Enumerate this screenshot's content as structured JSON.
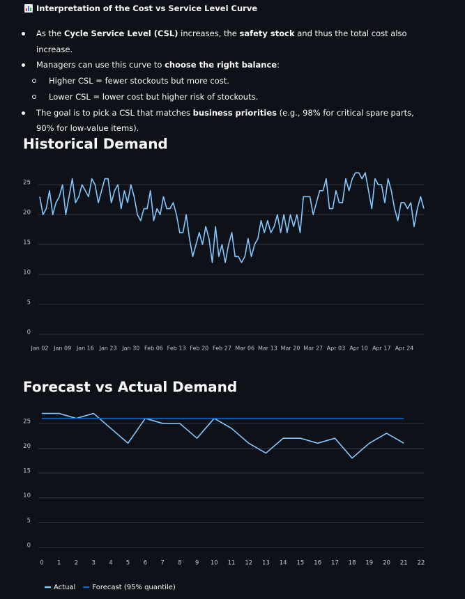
{
  "text": {
    "title": "Interpretation of the Cost vs Service Level Curve",
    "bullets": [
      {
        "segments": [
          {
            "text": "As the ",
            "bold": false
          },
          {
            "text": "Cycle Service Level (CSL)",
            "bold": true
          },
          {
            "text": " increases, the ",
            "bold": false
          },
          {
            "text": "safety stock",
            "bold": true
          },
          {
            "text": " and thus the total cost also increase.",
            "bold": false
          }
        ],
        "items": []
      },
      {
        "segments": [
          {
            "text": "Managers can use this curve to ",
            "bold": false
          },
          {
            "text": "choose the right balance",
            "bold": true
          },
          {
            "text": ":",
            "bold": false
          }
        ],
        "items": [
          "Higher CSL = fewer stockouts but more cost.",
          "Lower CSL = lower cost but higher risk of stockouts."
        ]
      },
      {
        "segments": [
          {
            "text": "The goal is to pick a CSL that matches ",
            "bold": false
          },
          {
            "text": "business priorities",
            "bold": true
          },
          {
            "text": " (e.g., 98% for critical spare parts, 90% for low-value items).",
            "bold": false
          }
        ],
        "items": []
      }
    ]
  },
  "chart_data": [
    {
      "type": "line",
      "title": "Historical Demand",
      "x": [
        "Jan 02",
        "Jan 03",
        "Jan 04",
        "Jan 05",
        "Jan 06",
        "Jan 07",
        "Jan 08",
        "Jan 09",
        "Jan 10",
        "Jan 11",
        "Jan 12",
        "Jan 13",
        "Jan 14",
        "Jan 15",
        "Jan 16",
        "Jan 17",
        "Jan 18",
        "Jan 19",
        "Jan 20",
        "Jan 21",
        "Jan 22",
        "Jan 23",
        "Jan 24",
        "Jan 25",
        "Jan 26",
        "Jan 27",
        "Jan 28",
        "Jan 29",
        "Jan 30",
        "Jan 31",
        "Feb 01",
        "Feb 02",
        "Feb 03",
        "Feb 04",
        "Feb 05",
        "Feb 06",
        "Feb 07",
        "Feb 08",
        "Feb 09",
        "Feb 10",
        "Feb 11",
        "Feb 12",
        "Feb 13",
        "Feb 14",
        "Feb 15",
        "Feb 16",
        "Feb 17",
        "Feb 18",
        "Feb 19",
        "Feb 20",
        "Feb 21",
        "Feb 22",
        "Feb 23",
        "Feb 24",
        "Feb 25",
        "Feb 26",
        "Feb 27",
        "Feb 28",
        "Mar 01",
        "Mar 02",
        "Mar 03",
        "Mar 04",
        "Mar 05",
        "Mar 06",
        "Mar 07",
        "Mar 08",
        "Mar 09",
        "Mar 10",
        "Mar 11",
        "Mar 12",
        "Mar 13",
        "Mar 14",
        "Mar 15",
        "Mar 16",
        "Mar 17",
        "Mar 18",
        "Mar 19",
        "Mar 20",
        "Mar 21",
        "Mar 22",
        "Mar 23",
        "Mar 24",
        "Mar 25",
        "Mar 26",
        "Mar 27",
        "Mar 28",
        "Mar 29",
        "Mar 30",
        "Mar 31",
        "Apr 01",
        "Apr 02",
        "Apr 03",
        "Apr 04",
        "Apr 05",
        "Apr 06",
        "Apr 07",
        "Apr 08",
        "Apr 09",
        "Apr 10",
        "Apr 11",
        "Apr 12",
        "Apr 13",
        "Apr 14",
        "Apr 15",
        "Apr 16",
        "Apr 17",
        "Apr 18",
        "Apr 19",
        "Apr 20",
        "Apr 21",
        "Apr 22",
        "Apr 23",
        "Apr 24",
        "Apr 25",
        "Apr 26",
        "Apr 27",
        "Apr 28",
        "Apr 29",
        "Apr 30"
      ],
      "series": [
        {
          "color": "#83c9ff",
          "values": [
            23,
            20,
            21,
            24,
            20,
            22,
            23,
            25,
            20,
            23,
            26,
            22,
            23,
            25,
            24,
            23,
            26,
            25,
            22,
            24,
            26,
            26,
            22,
            24,
            25,
            21,
            24,
            22,
            25,
            23,
            20,
            19,
            21,
            21,
            24,
            19,
            21,
            20,
            23,
            21,
            21,
            22,
            20,
            17,
            17,
            20,
            16,
            13,
            15,
            17,
            15,
            18,
            16,
            12,
            18,
            13,
            15,
            12,
            15,
            17,
            13,
            13,
            12,
            13,
            16,
            13,
            15,
            16,
            19,
            17,
            19,
            17,
            18,
            20,
            17,
            20,
            17,
            20,
            18,
            20,
            17,
            23,
            23,
            23,
            20,
            22,
            24,
            24,
            26,
            21,
            21,
            24,
            22,
            22,
            26,
            24,
            26,
            27,
            27,
            26,
            27,
            24,
            21,
            26,
            25,
            25,
            22,
            26,
            24,
            21,
            19,
            22,
            22,
            21,
            22,
            18,
            21,
            23,
            21
          ]
        }
      ],
      "ylim": [
        0,
        27
      ],
      "yticks": [
        0,
        5,
        10,
        15,
        20,
        25
      ],
      "grid": true
    },
    {
      "type": "line",
      "title": "Forecast vs Actual Demand",
      "x": [
        0,
        1,
        2,
        3,
        4,
        5,
        6,
        7,
        8,
        9,
        10,
        11,
        12,
        13,
        14,
        15,
        16,
        17,
        18,
        19,
        20,
        21
      ],
      "xlim": [
        0,
        22
      ],
      "xticks": [
        0,
        1,
        2,
        3,
        4,
        5,
        6,
        7,
        8,
        9,
        10,
        11,
        12,
        13,
        14,
        15,
        16,
        17,
        18,
        19,
        20,
        21,
        22
      ],
      "series": [
        {
          "name": "Actual",
          "color": "#83c9ff",
          "values": [
            27,
            27,
            26,
            27,
            24,
            21,
            26,
            25,
            25,
            22,
            26,
            24,
            21,
            19,
            22,
            22,
            21,
            22,
            18,
            21,
            23,
            21
          ]
        },
        {
          "name": "Forecast (95% quantile)",
          "color": "#0068c9",
          "values": [
            26,
            26,
            26,
            26,
            26,
            26,
            26,
            26,
            26,
            26,
            26,
            26,
            26,
            26,
            26,
            26,
            26,
            26,
            26,
            26,
            26,
            26
          ]
        }
      ],
      "ylim": [
        0,
        27.5
      ],
      "yticks": [
        0,
        5,
        10,
        15,
        20,
        25
      ],
      "grid": true,
      "legend": "bottom"
    }
  ]
}
